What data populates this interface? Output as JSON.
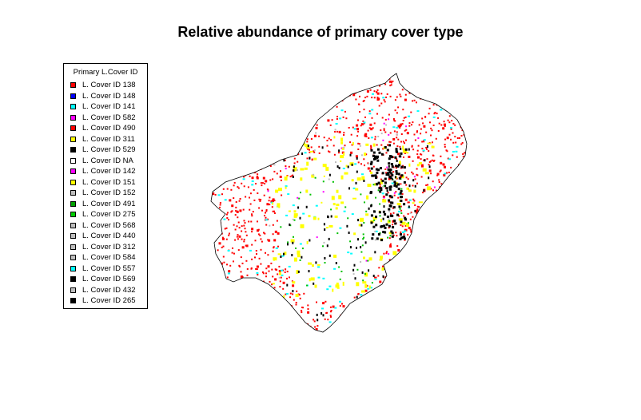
{
  "title": "Relative abundance of primary cover type",
  "legend": {
    "title": "Primary L.Cover ID",
    "items": [
      {
        "label": "L. Cover ID 138",
        "color": "#ff0000",
        "icon": "red-square-icon"
      },
      {
        "label": "L. Cover ID 148",
        "color": "#0000ff",
        "icon": "blue-square-icon"
      },
      {
        "label": "L. Cover ID 141",
        "color": "#00ffff",
        "icon": "cyan-square-icon"
      },
      {
        "label": "L. Cover ID 582",
        "color": "#ff00ff",
        "icon": "magenta-square-icon"
      },
      {
        "label": "L. Cover ID 490",
        "color": "#ff0000",
        "icon": "red-square-icon"
      },
      {
        "label": "L. Cover ID 311",
        "color": "#ffff00",
        "icon": "yellow-square-icon"
      },
      {
        "label": "L. Cover ID 529",
        "color": "#000000",
        "icon": "black-square-icon"
      },
      {
        "label": "L. Cover ID NA",
        "color": "#ffffff",
        "icon": "white-square-icon"
      },
      {
        "label": "L. Cover ID 142",
        "color": "#ff00ff",
        "icon": "magenta-square-icon"
      },
      {
        "label": "L. Cover ID 151",
        "color": "#ffff00",
        "icon": "yellow-square-icon"
      },
      {
        "label": "L. Cover ID 152",
        "color": "#bebebe",
        "icon": "gray-square-icon"
      },
      {
        "label": "L. Cover ID 491",
        "color": "#00a000",
        "icon": "green-square-icon"
      },
      {
        "label": "L. Cover ID 275",
        "color": "#00cd00",
        "icon": "green-square-icon"
      },
      {
        "label": "L. Cover ID 568",
        "color": "#bebebe",
        "icon": "gray-square-icon"
      },
      {
        "label": "L. Cover ID 440",
        "color": "#bebebe",
        "icon": "gray-square-icon"
      },
      {
        "label": "L. Cover ID 312",
        "color": "#bebebe",
        "icon": "gray-square-icon"
      },
      {
        "label": "L. Cover ID 584",
        "color": "#bebebe",
        "icon": "gray-square-icon"
      },
      {
        "label": "L. Cover ID 557",
        "color": "#00ffff",
        "icon": "cyan-square-icon"
      },
      {
        "label": "L. Cover ID 569",
        "color": "#000000",
        "icon": "black-square-icon"
      },
      {
        "label": "L. Cover ID 432",
        "color": "#bebebe",
        "icon": "gray-square-icon"
      },
      {
        "label": "L. Cover ID 265",
        "color": "#000000",
        "icon": "black-square-icon"
      }
    ]
  }
}
